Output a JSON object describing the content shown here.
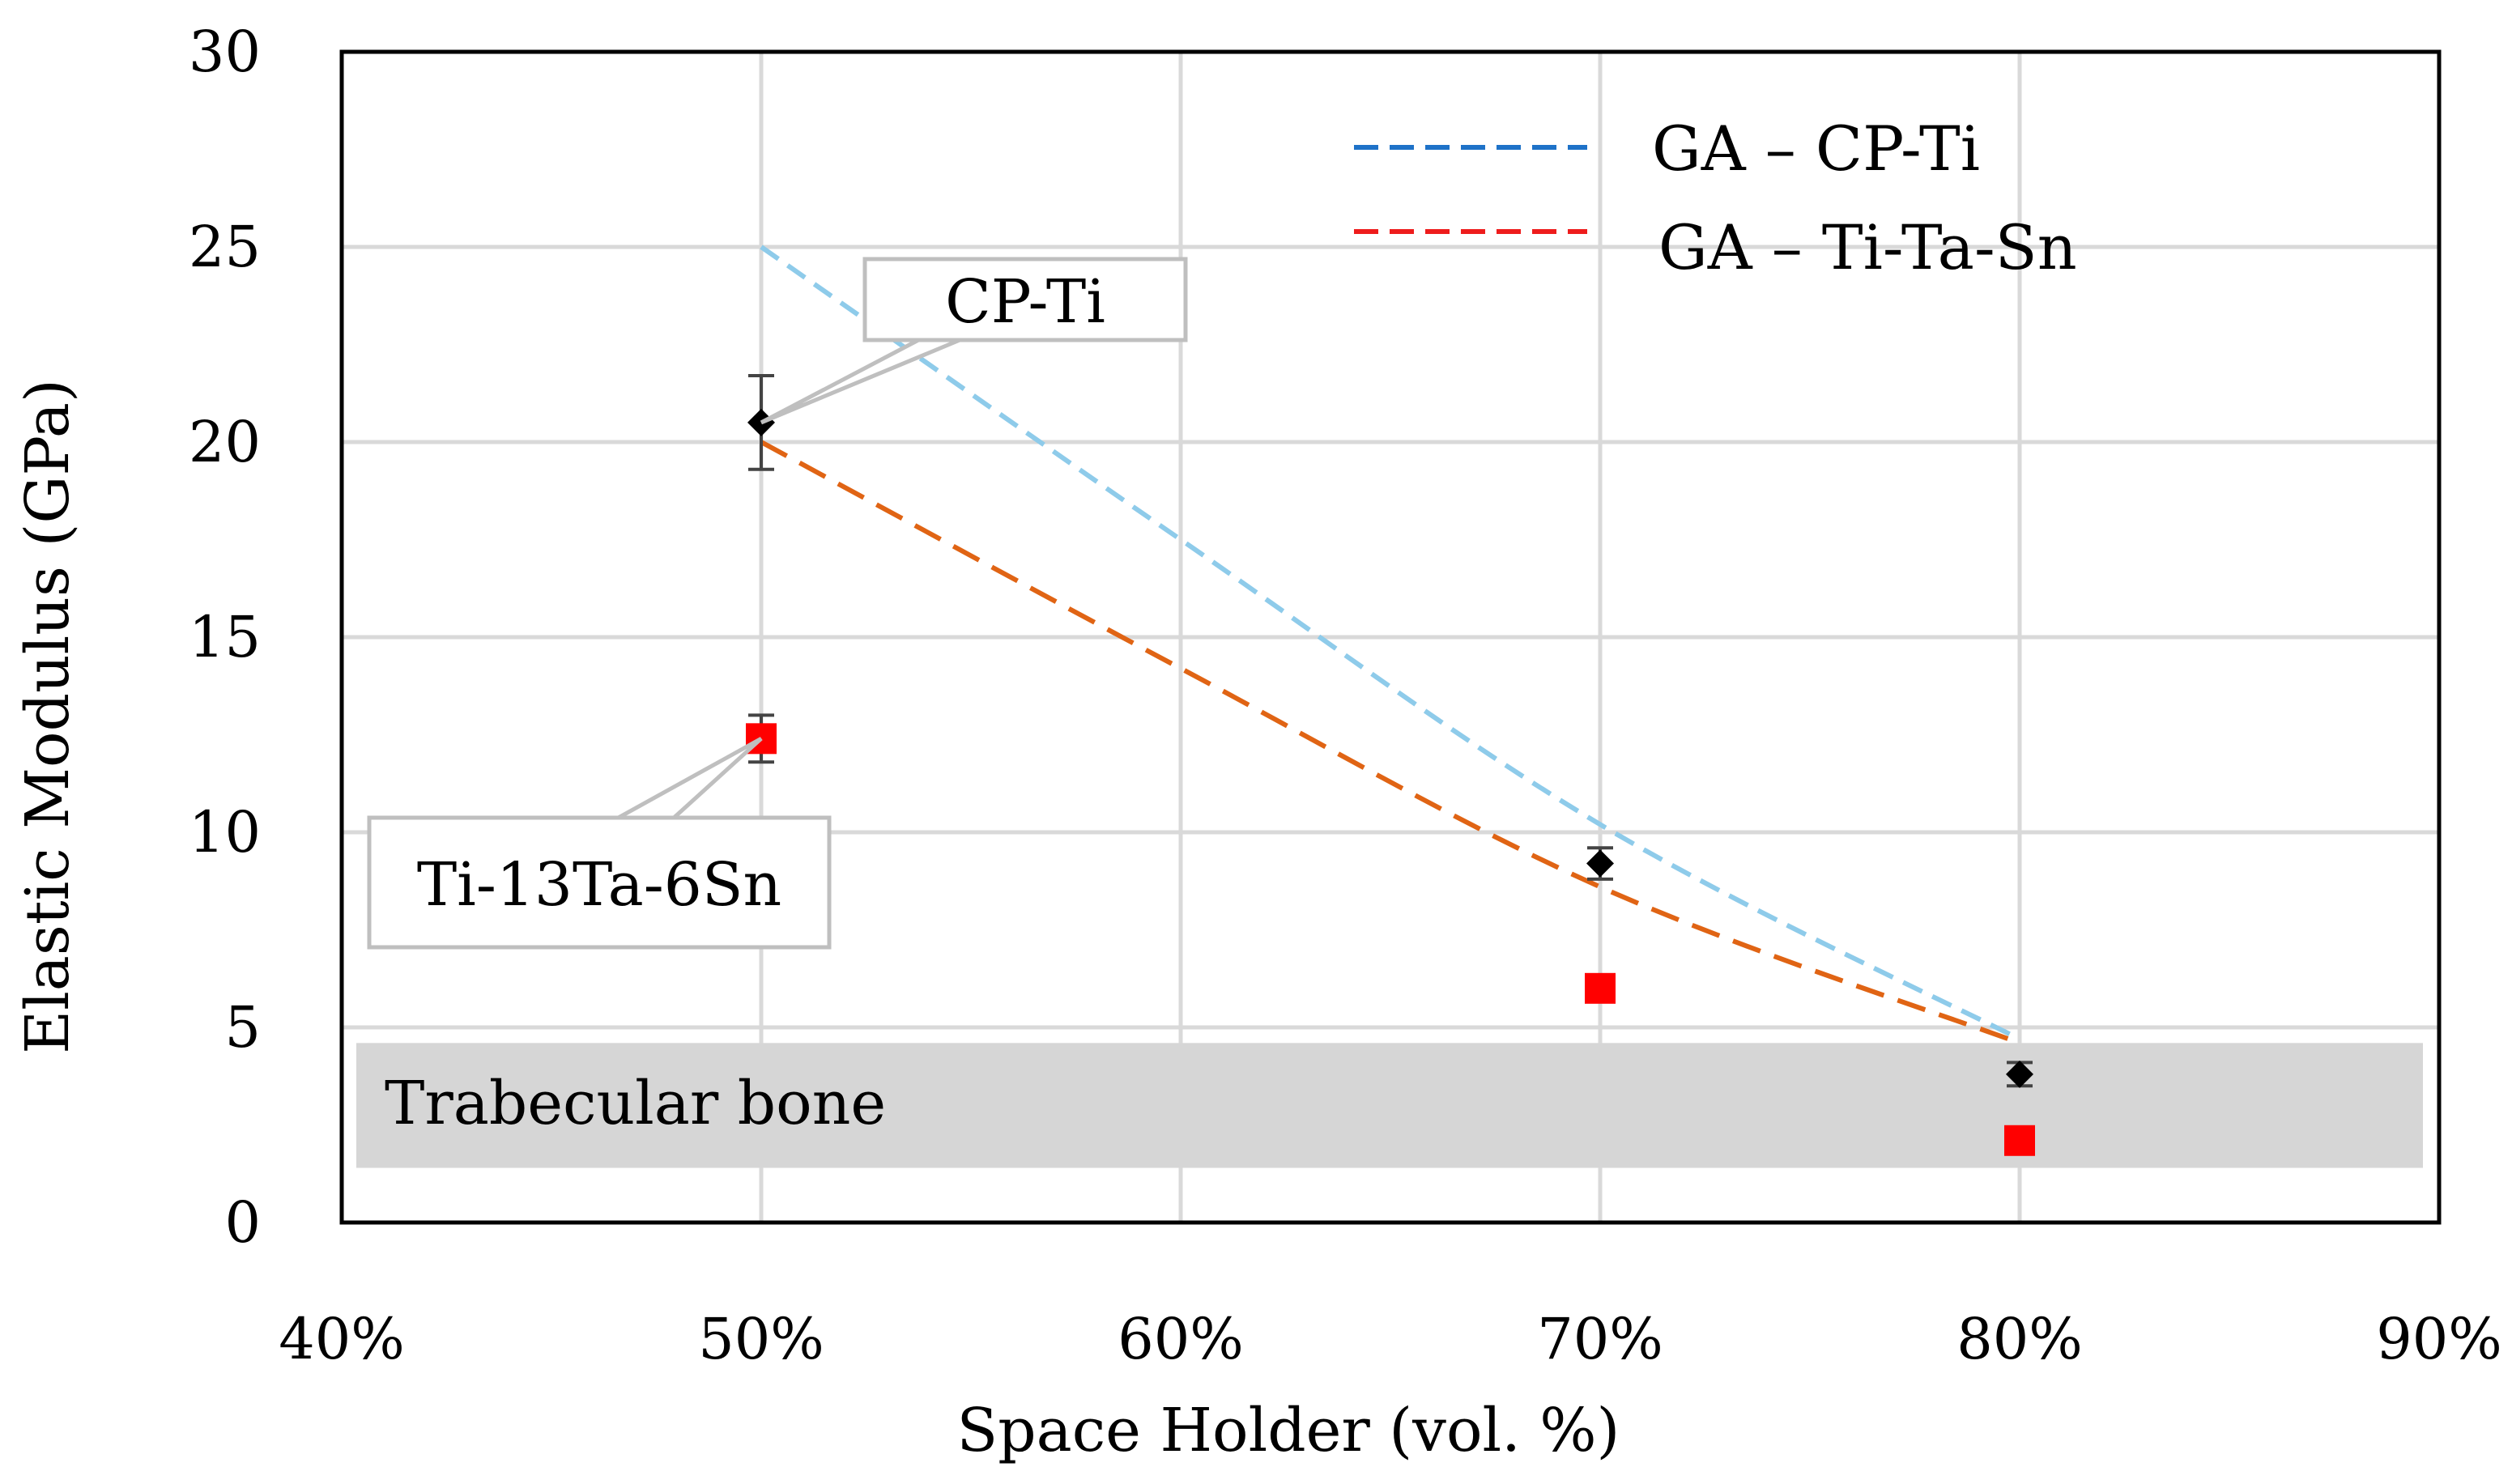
{
  "chart_data": {
    "type": "scatter",
    "title": "",
    "xlabel": "Space Holder (vol. %)",
    "ylabel": "Elastic Modulus (GPa)",
    "xlim": [
      0.4,
      0.9
    ],
    "ylim": [
      0,
      30
    ],
    "xticks": [
      0.4,
      0.5,
      0.6,
      0.7,
      0.8,
      0.9
    ],
    "xtick_labels": [
      "40%",
      "50%",
      "60%",
      "70%",
      "80%",
      "90%"
    ],
    "yticks": [
      0,
      5,
      10,
      15,
      20,
      25,
      30
    ],
    "ytick_labels": [
      "0",
      "5",
      "10",
      "15",
      "20",
      "25",
      "30"
    ],
    "grid": true,
    "series": [
      {
        "name": "CP-Ti",
        "marker": "diamond",
        "color": "#000000",
        "x": [
          0.5,
          0.7,
          0.8
        ],
        "y": [
          20.5,
          9.2,
          3.8
        ],
        "err": [
          1.2,
          0.4,
          0.3
        ]
      },
      {
        "name": "Ti-13Ta-6Sn",
        "marker": "square",
        "color": "#ff0000",
        "x": [
          0.5,
          0.7,
          0.8
        ],
        "y": [
          12.4,
          6.0,
          2.1
        ],
        "err": [
          0.6,
          0.3,
          0.2
        ]
      }
    ],
    "fits": [
      {
        "name": "GA – CP-Ti",
        "color": "#8ecbea",
        "legend_color": "#1e72c8",
        "style": "dashed",
        "x": [
          0.5,
          0.6,
          0.7,
          0.8
        ],
        "y": [
          25.0,
          17.5,
          10.2,
          4.7
        ]
      },
      {
        "name": "GA – Ti-Ta-Sn",
        "color": "#e06414",
        "legend_color": "#ee1c1c",
        "style": "dashed",
        "x": [
          0.5,
          0.6,
          0.7,
          0.8
        ],
        "y": [
          20.0,
          14.2,
          8.6,
          4.6
        ]
      }
    ],
    "band": {
      "label": "Trabecular bone",
      "y": [
        1.4,
        4.6
      ],
      "color": "#d6d6d6"
    },
    "callouts": [
      {
        "label": "CP-Ti",
        "x": 0.5,
        "y": 20.5
      },
      {
        "label": "Ti-13Ta-6Sn",
        "x": 0.5,
        "y": 12.4
      }
    ],
    "legend_position": "top-right"
  }
}
